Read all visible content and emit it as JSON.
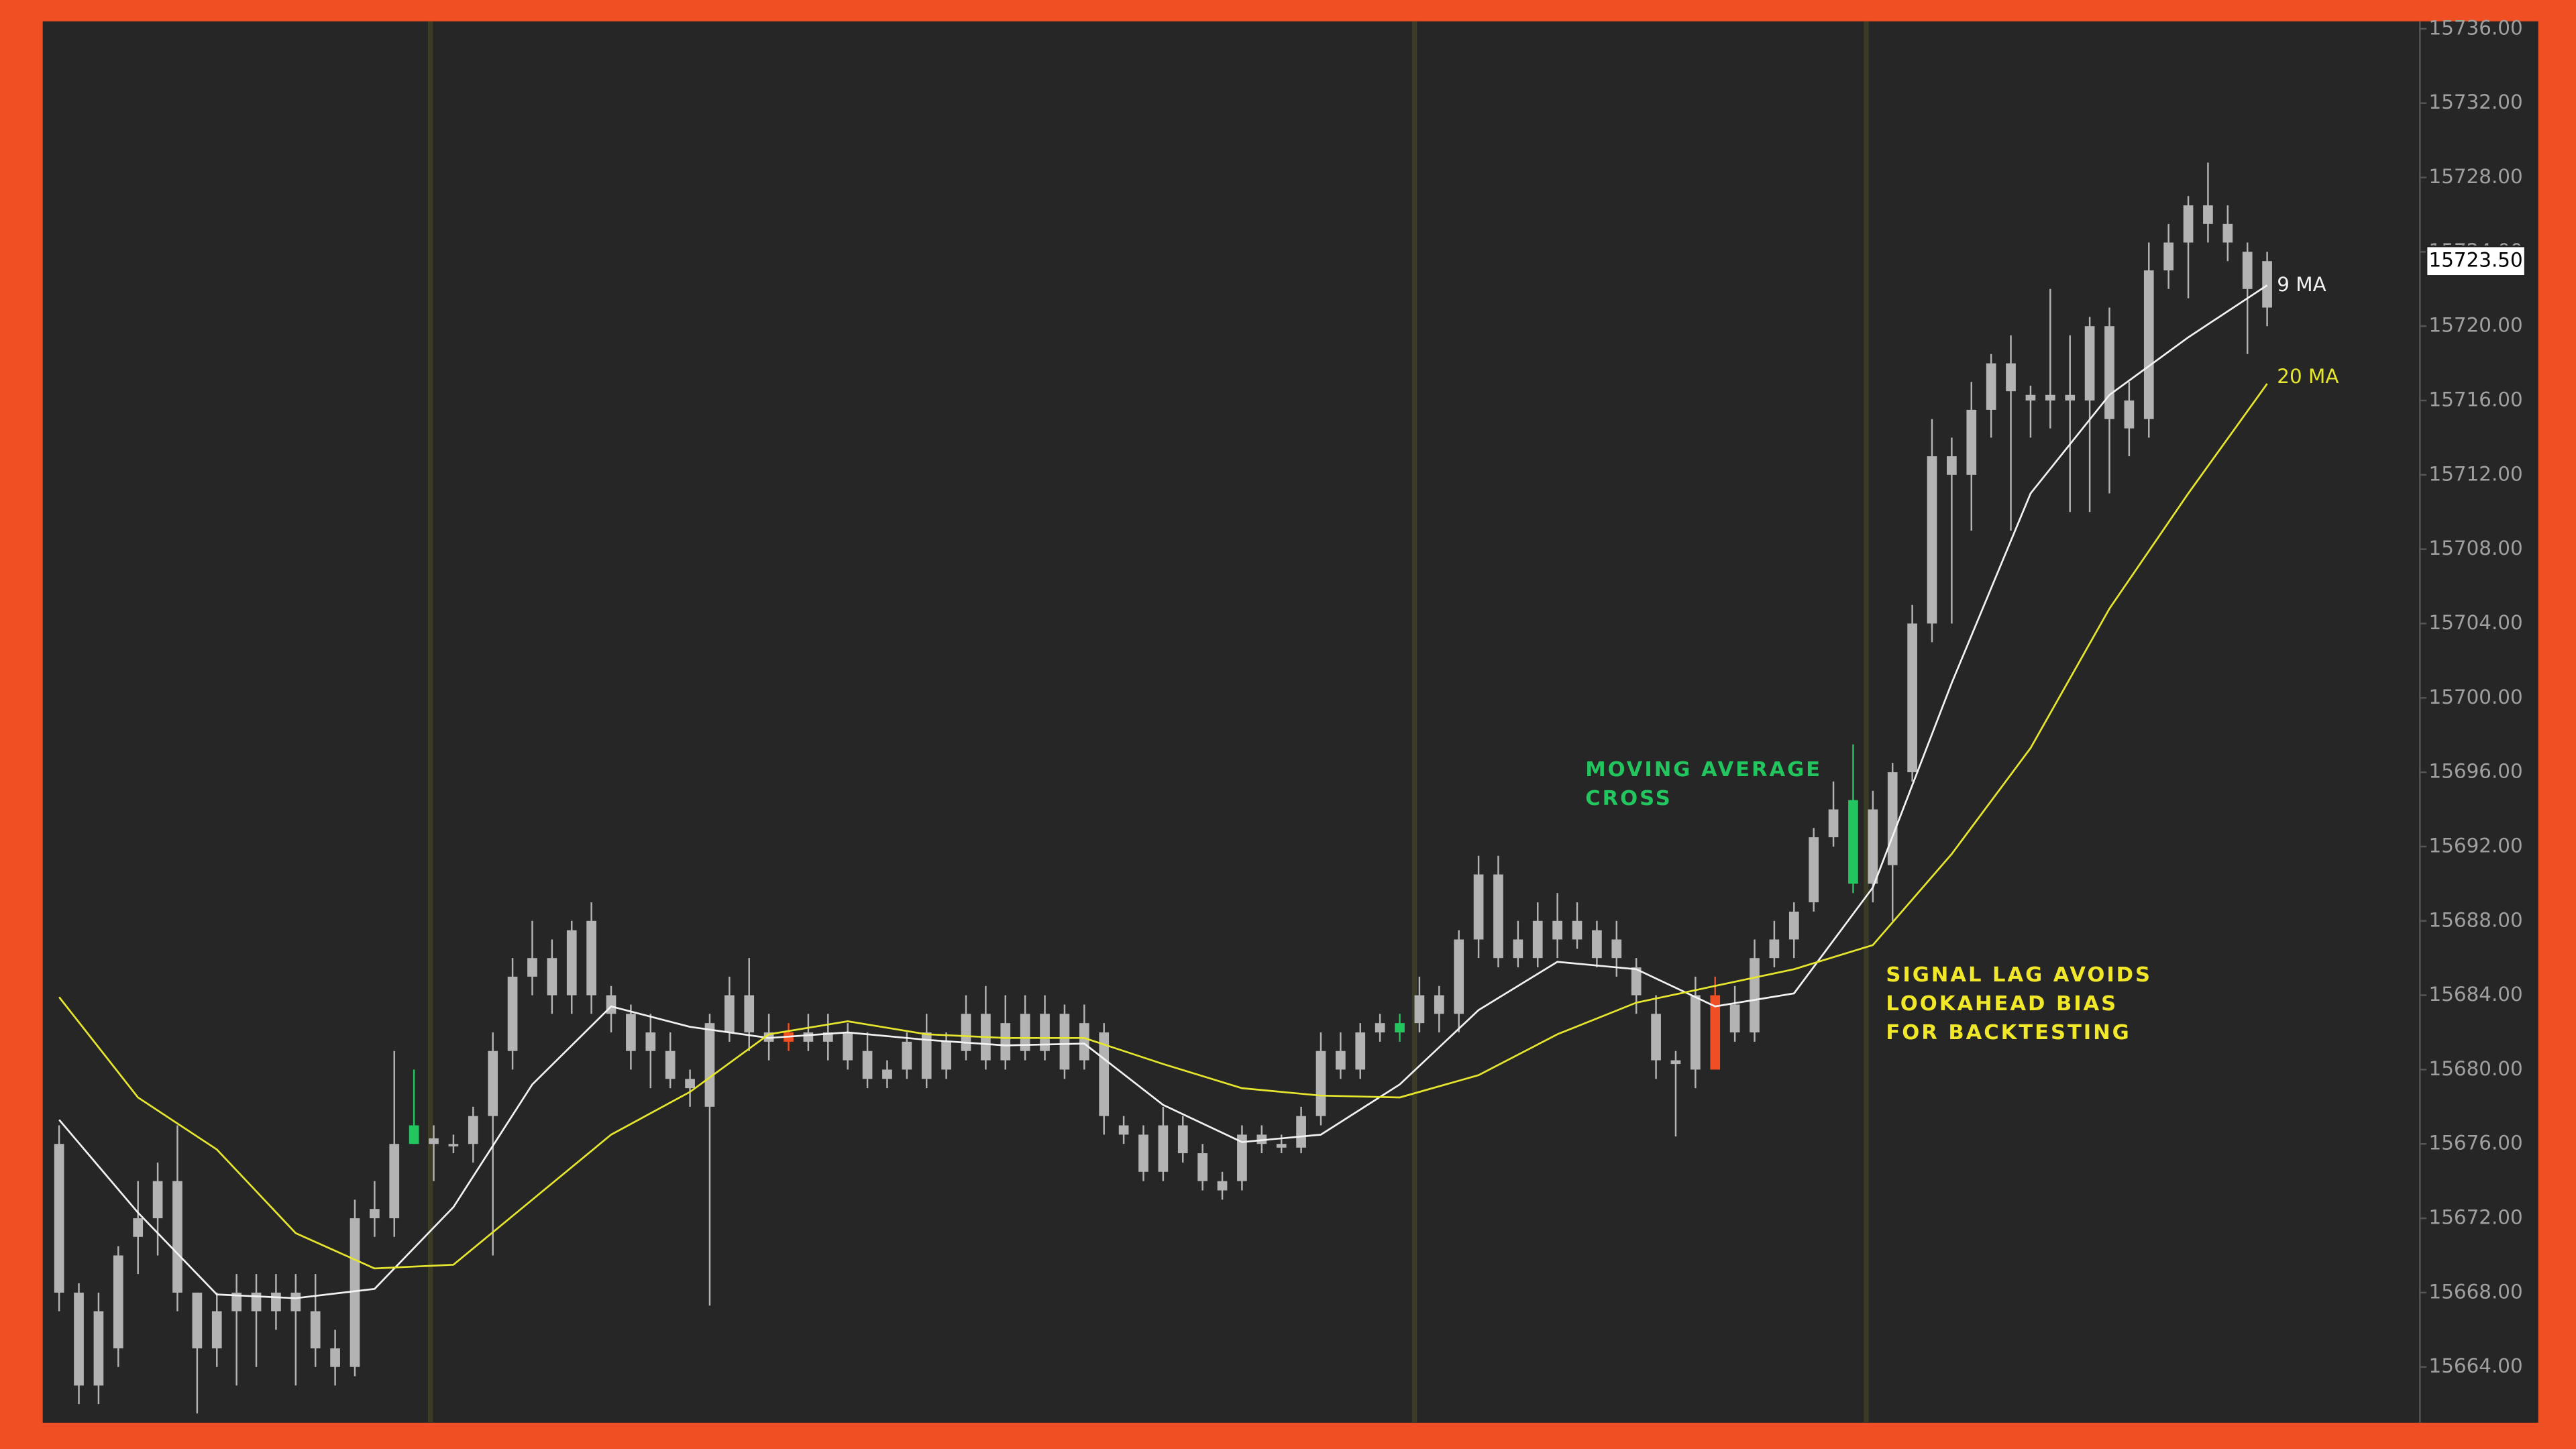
{
  "chart_data": {
    "type": "candlestick",
    "candle_color": "#b3b3b3",
    "highlights": [
      {
        "index": 18,
        "color": "#22c55e"
      },
      {
        "index": 37,
        "color": "#f04e23"
      },
      {
        "index": 68,
        "color": "#22c55e"
      },
      {
        "index": 84,
        "color": "#f04e23"
      },
      {
        "index": 91,
        "color": "#22c55e"
      }
    ],
    "candles": {
      "open": [
        15668,
        15668,
        15663,
        15665,
        15671,
        15672,
        15674,
        15668,
        15665,
        15667,
        15668,
        15667,
        15668,
        15667,
        15665,
        15664,
        15672,
        15672,
        15676,
        15676,
        15676,
        15676,
        15677.5,
        15681,
        15685,
        15686,
        15684,
        15688,
        15684,
        15683,
        15681,
        15681,
        15679.5,
        15678,
        15682,
        15684,
        15682,
        15682,
        15681.5,
        15682,
        15682,
        15681,
        15680,
        15680,
        15682,
        15680,
        15681,
        15683,
        15680.5,
        15683,
        15681,
        15683,
        15680.5,
        15682,
        15677,
        15676.5,
        15674.5,
        15677,
        15675.5,
        15674,
        15674,
        15676.5,
        15676,
        15675.8,
        15677.5,
        15681,
        15680,
        15682,
        15682,
        15682.5,
        15684,
        15683,
        15687,
        15690.5,
        15686,
        15686,
        15688,
        15687,
        15687.5,
        15686,
        15685.5,
        15683,
        15680.5,
        15680,
        15684,
        15682,
        15682,
        15686,
        15687,
        15689,
        15692.5,
        15690,
        15694,
        15691,
        15696,
        15704,
        15713,
        15712,
        15715.5,
        15718,
        15716,
        15716.3,
        15716,
        15716,
        15720,
        15716,
        15715,
        15723,
        15724.5,
        15726.5,
        15725.5,
        15724,
        15721
      ],
      "high": [
        15677,
        15668.5,
        15668,
        15670.5,
        15674,
        15675,
        15677,
        15668,
        15668,
        15669,
        15669,
        15669,
        15669,
        15669,
        15666,
        15673,
        15674,
        15681,
        15680,
        15677,
        15676.5,
        15678,
        15682,
        15686,
        15688,
        15687,
        15688,
        15689,
        15684.5,
        15683.5,
        15683,
        15682,
        15680,
        15683,
        15685,
        15686,
        15683,
        15682.5,
        15683,
        15683,
        15682.5,
        15682,
        15680.5,
        15682,
        15683,
        15682,
        15684,
        15684.5,
        15684,
        15684,
        15684,
        15683.5,
        15683.5,
        15682.5,
        15677.5,
        15677,
        15678,
        15677.5,
        15676,
        15674.5,
        15677,
        15677,
        15676.5,
        15678,
        15682,
        15682,
        15682.5,
        15683,
        15683,
        15685,
        15684.5,
        15687.5,
        15691.5,
        15691.5,
        15688,
        15689,
        15689.5,
        15689,
        15688,
        15688,
        15686,
        15684,
        15681,
        15685,
        15685,
        15684.5,
        15687,
        15688,
        15689,
        15693,
        15695.5,
        15697.5,
        15695,
        15696.5,
        15705,
        15715,
        15714,
        15717,
        15718.5,
        15719.5,
        15716.8,
        15722,
        15719.5,
        15720.5,
        15721,
        15717,
        15724.5,
        15725.5,
        15727,
        15728.8,
        15726.5,
        15724.5,
        15724
      ],
      "low": [
        15667,
        15662,
        15662,
        15664,
        15669,
        15670,
        15667,
        15661.5,
        15664,
        15663,
        15664,
        15666,
        15663,
        15664,
        15663,
        15663.5,
        15671,
        15671,
        15676,
        15674,
        15675.5,
        15675,
        15670,
        15680,
        15684,
        15683,
        15683,
        15683,
        15682,
        15680,
        15679,
        15679,
        15678,
        15667.3,
        15681.5,
        15681,
        15680.5,
        15681,
        15681,
        15680.5,
        15680,
        15679,
        15679,
        15679.5,
        15679,
        15679.5,
        15680.5,
        15680,
        15680,
        15680.5,
        15680.5,
        15679.5,
        15680,
        15676.5,
        15676,
        15674,
        15674,
        15675,
        15673.5,
        15673,
        15673.5,
        15675.5,
        15675.5,
        15675.5,
        15677,
        15679.5,
        15679.5,
        15681.5,
        15681.5,
        15682,
        15682,
        15682,
        15686,
        15685.5,
        15685.5,
        15685.5,
        15686,
        15686.5,
        15685.5,
        15685,
        15683,
        15679.5,
        15676.4,
        15679,
        15680,
        15681.5,
        15681.5,
        15685.5,
        15686,
        15688.5,
        15692,
        15689.5,
        15689,
        15688,
        15695.5,
        15703,
        15704,
        15709,
        15714,
        15709,
        15714,
        15714.5,
        15710,
        15710,
        15711,
        15713,
        15714,
        15722,
        15721.5,
        15724.5,
        15723.5,
        15718.5,
        15720
      ],
      "close": [
        15676,
        15663,
        15667,
        15670,
        15672,
        15674,
        15668,
        15665,
        15667,
        15668,
        15667,
        15668,
        15667,
        15665,
        15664,
        15672,
        15672.5,
        15676,
        15677,
        15676.3,
        15676,
        15677.5,
        15681,
        15685,
        15686,
        15684,
        15687.5,
        15684,
        15683,
        15681,
        15682,
        15679.5,
        15679,
        15682.5,
        15684,
        15682,
        15681.5,
        15681.5,
        15682,
        15681.5,
        15680.5,
        15679.5,
        15679.5,
        15681.5,
        15679.5,
        15681.5,
        15683,
        15680.5,
        15682.5,
        15681,
        15683,
        15680,
        15682.5,
        15677.5,
        15676.5,
        15674.5,
        15677,
        15675.5,
        15674,
        15673.5,
        15676.5,
        15676,
        15675.8,
        15677.5,
        15681,
        15680,
        15682,
        15682.5,
        15682.5,
        15684,
        15683,
        15687,
        15690.5,
        15686,
        15687,
        15688,
        15687,
        15688,
        15686,
        15687,
        15684,
        15680.5,
        15680.3,
        15684,
        15680,
        15683.5,
        15686,
        15687,
        15688.5,
        15692.5,
        15694,
        15694.5,
        15690,
        15696,
        15704,
        15713,
        15712,
        15715.5,
        15718,
        15716.5,
        15716.3,
        15716,
        15716.3,
        15720,
        15715,
        15714.5,
        15723,
        15724.5,
        15726.5,
        15725.5,
        15724.5,
        15722,
        15723.5
      ]
    },
    "series": [
      {
        "name": "9 MA",
        "color": "#f2f2f2",
        "x": [
          0,
          4,
          8,
          12,
          16,
          20,
          24,
          28,
          32,
          36,
          40,
          44,
          48,
          52,
          56,
          60,
          64,
          68,
          72,
          76,
          80,
          84,
          88,
          92,
          96,
          100,
          104,
          108,
          112
        ],
        "values": [
          15677.3,
          15672.3,
          15667.9,
          15667.7,
          15668.2,
          15672.6,
          15679.2,
          15683.4,
          15682.3,
          15681.7,
          15682,
          15681.6,
          15681.3,
          15681.4,
          15678.1,
          15676.1,
          15676.5,
          15679.2,
          15683.2,
          15685.8,
          15685.4,
          15683.4,
          15684.1,
          15689.8,
          15700.8,
          15711,
          15716.3,
          15719.4,
          15722.2
        ]
      },
      {
        "name": "20 MA",
        "color": "#e6e62e",
        "x": [
          0,
          4,
          8,
          12,
          16,
          20,
          24,
          28,
          32,
          36,
          40,
          44,
          48,
          52,
          56,
          60,
          64,
          68,
          72,
          76,
          80,
          84,
          88,
          92,
          96,
          100,
          104,
          108,
          112
        ],
        "values": [
          15683.9,
          15678.5,
          15675.7,
          15671.2,
          15669.3,
          15669.5,
          15673,
          15676.5,
          15678.8,
          15681.9,
          15682.6,
          15681.9,
          15681.7,
          15681.7,
          15680.3,
          15679,
          15678.6,
          15678.5,
          15679.7,
          15681.9,
          15683.6,
          15684.5,
          15685.4,
          15686.7,
          15691.6,
          15697.3,
          15704.8,
          15711,
          15716.9
        ]
      }
    ],
    "last_price": {
      "value": 15723.5,
      "label": "15723.50"
    },
    "annotations": [
      {
        "lines": [
          "MOVING AVERAGE",
          "CROSS"
        ],
        "color": "#22c55e"
      },
      {
        "lines": [
          "SIGNAL LAG AVOIDS",
          "LOOKAHEAD BIAS",
          "FOR BACKTESTING"
        ],
        "color": "#f2e82a"
      }
    ],
    "ylim": [
      15661,
      15736.4
    ],
    "yticks": [
      {
        "value": 15664,
        "label": "15664.00"
      },
      {
        "value": 15668,
        "label": "15668.00"
      },
      {
        "value": 15672,
        "label": "15672.00"
      },
      {
        "value": 15676,
        "label": "15676.00"
      },
      {
        "value": 15680,
        "label": "15680.00"
      },
      {
        "value": 15684,
        "label": "15684.00"
      },
      {
        "value": 15688,
        "label": "15688.00"
      },
      {
        "value": 15692,
        "label": "15692.00"
      },
      {
        "value": 15696,
        "label": "15696.00"
      },
      {
        "value": 15700,
        "label": "15700.00"
      },
      {
        "value": 15704,
        "label": "15704.00"
      },
      {
        "value": 15708,
        "label": "15708.00"
      },
      {
        "value": 15712,
        "label": "15712.00"
      },
      {
        "value": 15716,
        "label": "15716.00"
      },
      {
        "value": 15720,
        "label": "15720.00"
      },
      {
        "value": 15724,
        "label": "15724.00"
      },
      {
        "value": 15728,
        "label": "15728.00"
      },
      {
        "value": 15732,
        "label": "15732.00"
      },
      {
        "value": 15736,
        "label": "15736.00"
      }
    ],
    "grid": false
  }
}
